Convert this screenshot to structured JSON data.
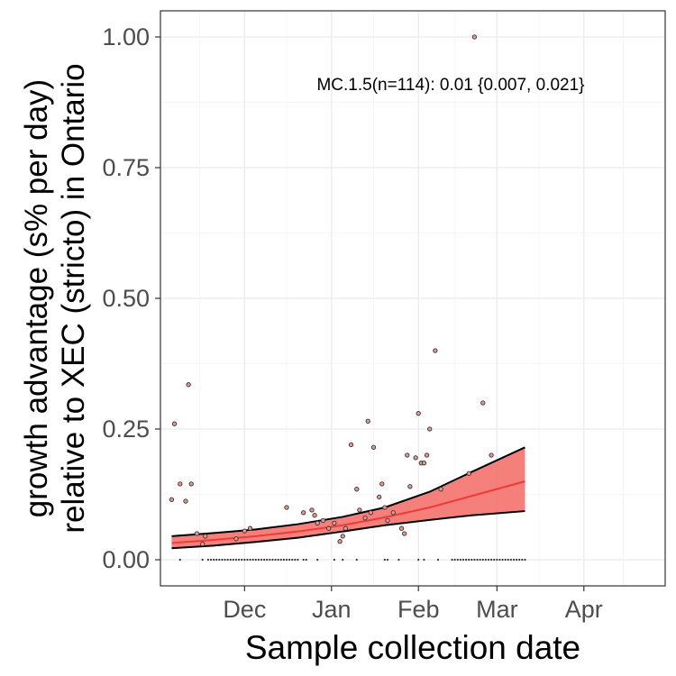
{
  "chart_data": {
    "type": "scatter",
    "title": "",
    "annotation": "MC.1.5(n=114): 0.01 {0.007, 0.021}",
    "xlabel": "Sample collection date",
    "ylabel_lines": [
      "growth advantage (s% per day)",
      "relative to XEC (stricto) in Ontario"
    ],
    "x_ticks": [
      "Dec",
      "Jan",
      "Feb",
      "Mar",
      "Apr"
    ],
    "x_tick_dates": [
      "2024-12-01",
      "2025-01-01",
      "2025-02-01",
      "2025-03-01",
      "2025-04-01"
    ],
    "xlim": [
      "2024-11-01",
      "2025-04-30"
    ],
    "y_ticks": [
      "0.00",
      "0.25",
      "0.50",
      "0.75",
      "1.00"
    ],
    "ylim": [
      -0.05,
      1.05
    ],
    "grid": true,
    "colors": {
      "ribbon": "#f4716b",
      "fit_line": "#ee3b36",
      "point_fill": "#e89892",
      "point_stroke": "#333333"
    },
    "points": [
      {
        "x": "2024-11-06",
        "y": 0.26
      },
      {
        "x": "2024-11-05",
        "y": 0.115
      },
      {
        "x": "2024-11-08",
        "y": 0.145
      },
      {
        "x": "2024-11-10",
        "y": 0.112
      },
      {
        "x": "2024-11-11",
        "y": 0.335
      },
      {
        "x": "2024-11-12",
        "y": 0.145
      },
      {
        "x": "2024-11-14",
        "y": 0.05
      },
      {
        "x": "2024-11-16",
        "y": 0.03
      },
      {
        "x": "2024-11-17",
        "y": 0.045
      },
      {
        "x": "2024-11-28",
        "y": 0.04
      },
      {
        "x": "2024-12-01",
        "y": 0.055
      },
      {
        "x": "2024-12-03",
        "y": 0.06
      },
      {
        "x": "2024-12-16",
        "y": 0.1
      },
      {
        "x": "2024-12-22",
        "y": 0.09
      },
      {
        "x": "2024-12-25",
        "y": 0.095
      },
      {
        "x": "2024-12-26",
        "y": 0.085
      },
      {
        "x": "2024-12-27",
        "y": 0.07
      },
      {
        "x": "2024-12-29",
        "y": 0.075
      },
      {
        "x": "2024-12-31",
        "y": 0.06
      },
      {
        "x": "2025-01-02",
        "y": 0.07
      },
      {
        "x": "2025-01-04",
        "y": 0.035
      },
      {
        "x": "2025-01-05",
        "y": 0.045
      },
      {
        "x": "2025-01-06",
        "y": 0.06
      },
      {
        "x": "2025-01-08",
        "y": 0.22
      },
      {
        "x": "2025-01-10",
        "y": 0.135
      },
      {
        "x": "2025-01-11",
        "y": 0.095
      },
      {
        "x": "2025-01-13",
        "y": 0.08
      },
      {
        "x": "2025-01-14",
        "y": 0.265
      },
      {
        "x": "2025-01-15",
        "y": 0.09
      },
      {
        "x": "2025-01-16",
        "y": 0.215
      },
      {
        "x": "2025-01-18",
        "y": 0.12
      },
      {
        "x": "2025-01-19",
        "y": 0.145
      },
      {
        "x": "2025-01-20",
        "y": 0.1
      },
      {
        "x": "2025-01-21",
        "y": 0.075
      },
      {
        "x": "2025-01-23",
        "y": 0.09
      },
      {
        "x": "2025-01-26",
        "y": 0.06
      },
      {
        "x": "2025-01-27",
        "y": 0.05
      },
      {
        "x": "2025-01-28",
        "y": 0.2
      },
      {
        "x": "2025-01-29",
        "y": 0.14
      },
      {
        "x": "2025-01-31",
        "y": 0.195
      },
      {
        "x": "2025-02-01",
        "y": 0.28
      },
      {
        "x": "2025-02-02",
        "y": 0.185
      },
      {
        "x": "2025-02-03",
        "y": 0.185
      },
      {
        "x": "2025-02-04",
        "y": 0.2
      },
      {
        "x": "2025-02-05",
        "y": 0.25
      },
      {
        "x": "2025-02-07",
        "y": 0.4
      },
      {
        "x": "2025-02-09",
        "y": 0.135
      },
      {
        "x": "2025-02-19",
        "y": 0.165
      },
      {
        "x": "2025-02-21",
        "y": 1.0
      },
      {
        "x": "2025-02-24",
        "y": 0.3
      },
      {
        "x": "2025-02-27",
        "y": 0.2
      }
    ],
    "zero_points": [
      "2024-11-08",
      "2024-11-16",
      "2024-11-18",
      "2024-11-19",
      "2024-11-20",
      "2024-11-21",
      "2024-11-22",
      "2024-11-23",
      "2024-11-24",
      "2024-11-25",
      "2024-11-26",
      "2024-11-27",
      "2024-11-28",
      "2024-11-29",
      "2024-11-30",
      "2024-12-01",
      "2024-12-02",
      "2024-12-03",
      "2024-12-04",
      "2024-12-05",
      "2024-12-06",
      "2024-12-07",
      "2024-12-08",
      "2024-12-09",
      "2024-12-10",
      "2024-12-11",
      "2024-12-12",
      "2024-12-13",
      "2024-12-14",
      "2024-12-15",
      "2024-12-16",
      "2024-12-17",
      "2024-12-18",
      "2024-12-19",
      "2024-12-20",
      "2024-12-22",
      "2024-12-23",
      "2024-12-27",
      "2025-01-02",
      "2025-01-05",
      "2025-01-10",
      "2025-01-20",
      "2025-01-21",
      "2025-01-25",
      "2025-02-01",
      "2025-02-03",
      "2025-02-08",
      "2025-02-13",
      "2025-02-14",
      "2025-02-15",
      "2025-02-16",
      "2025-02-17",
      "2025-02-18",
      "2025-02-19",
      "2025-02-20",
      "2025-02-21",
      "2025-02-22",
      "2025-02-23",
      "2025-02-24",
      "2025-02-25",
      "2025-02-26",
      "2025-02-27",
      "2025-02-28",
      "2025-03-01",
      "2025-03-02",
      "2025-03-03",
      "2025-03-04",
      "2025-03-05",
      "2025-03-06",
      "2025-03-07",
      "2025-03-08",
      "2025-03-09",
      "2025-03-10",
      "2025-03-11"
    ],
    "fit": [
      {
        "x": "2024-11-05",
        "y": 0.032,
        "lo": 0.022,
        "hi": 0.045
      },
      {
        "x": "2024-11-20",
        "y": 0.038,
        "lo": 0.027,
        "hi": 0.051
      },
      {
        "x": "2024-12-05",
        "y": 0.045,
        "lo": 0.034,
        "hi": 0.058
      },
      {
        "x": "2024-12-20",
        "y": 0.054,
        "lo": 0.042,
        "hi": 0.068
      },
      {
        "x": "2025-01-05",
        "y": 0.066,
        "lo": 0.054,
        "hi": 0.082
      },
      {
        "x": "2025-01-20",
        "y": 0.081,
        "lo": 0.066,
        "hi": 0.1
      },
      {
        "x": "2025-02-05",
        "y": 0.1,
        "lo": 0.076,
        "hi": 0.13
      },
      {
        "x": "2025-02-20",
        "y": 0.122,
        "lo": 0.085,
        "hi": 0.168
      },
      {
        "x": "2025-03-11",
        "y": 0.15,
        "lo": 0.093,
        "hi": 0.215
      }
    ]
  }
}
